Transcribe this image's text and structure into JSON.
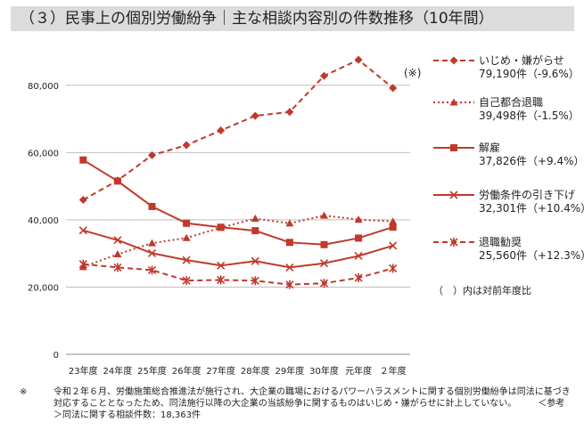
{
  "title": "（３）民事上の個別労働紛争｜主な相談内容別の件数推移（10年間）",
  "note_mark": "(※)",
  "footnote": {
    "mark": "※",
    "text": "令和２年６月、労働施策総合推進法が施行され、大企業の職場におけるパワーハラスメントに関する個別労働紛争は同法に基づき対応することとなったため、同法施行以降の大企業の当該紛争に関するものはいじめ・嫌がらせに計上していない。",
    "ref": "＜参考＞同法に関する相談件数：18,363件"
  },
  "colors": {
    "series": "#c0392b",
    "grid": "#bfbfbf",
    "title_bg": "#dcdcdc"
  },
  "chart_data": {
    "type": "line",
    "categories": [
      "23年度",
      "24年度",
      "25年度",
      "26年度",
      "27年度",
      "28年度",
      "29年度",
      "30年度",
      "元年度",
      "２年度"
    ],
    "ylim": [
      0,
      90000
    ],
    "yticks": [
      0,
      20000,
      40000,
      60000,
      80000
    ],
    "ytick_labels": [
      "0",
      "20,000",
      "40,000",
      "60,000",
      "80,000"
    ],
    "grid": true,
    "legend_position": "right",
    "legend_note": "（　）内は対前年度比",
    "series": [
      {
        "name": "いじめ・嫌がらせ",
        "detail": "79,190件（-9.6%）",
        "marker": "diamond",
        "line": "dashed",
        "values": [
          45939,
          51670,
          59197,
          62191,
          66566,
          70917,
          72067,
          82797,
          87570,
          79190
        ]
      },
      {
        "name": "自己都合退職",
        "detail": "39,498件（-1.5%）",
        "marker": "triangle",
        "line": "dotted",
        "values": [
          25966,
          29763,
          33049,
          34626,
          37648,
          40364,
          38954,
          41258,
          40081,
          39498
        ]
      },
      {
        "name": "解雇",
        "detail": "37,826件（+9.4%）",
        "marker": "square",
        "line": "solid",
        "values": [
          57785,
          51515,
          43956,
          38966,
          37787,
          36760,
          33269,
          32614,
          34561,
          37826
        ]
      },
      {
        "name": "労働条件の引き下げ",
        "detail": "32,301件（+10.4%）",
        "marker": "x",
        "line": "solid",
        "values": [
          36849,
          33955,
          30067,
          28015,
          26392,
          27723,
          25841,
          27069,
          29257,
          32301
        ]
      },
      {
        "name": "退職勧奨",
        "detail": "25,560件（+12.3%）",
        "marker": "asterisk",
        "line": "dashed",
        "values": [
          26828,
          25838,
          25041,
          21928,
          22110,
          21901,
          20736,
          21125,
          22762,
          25560
        ]
      }
    ]
  }
}
